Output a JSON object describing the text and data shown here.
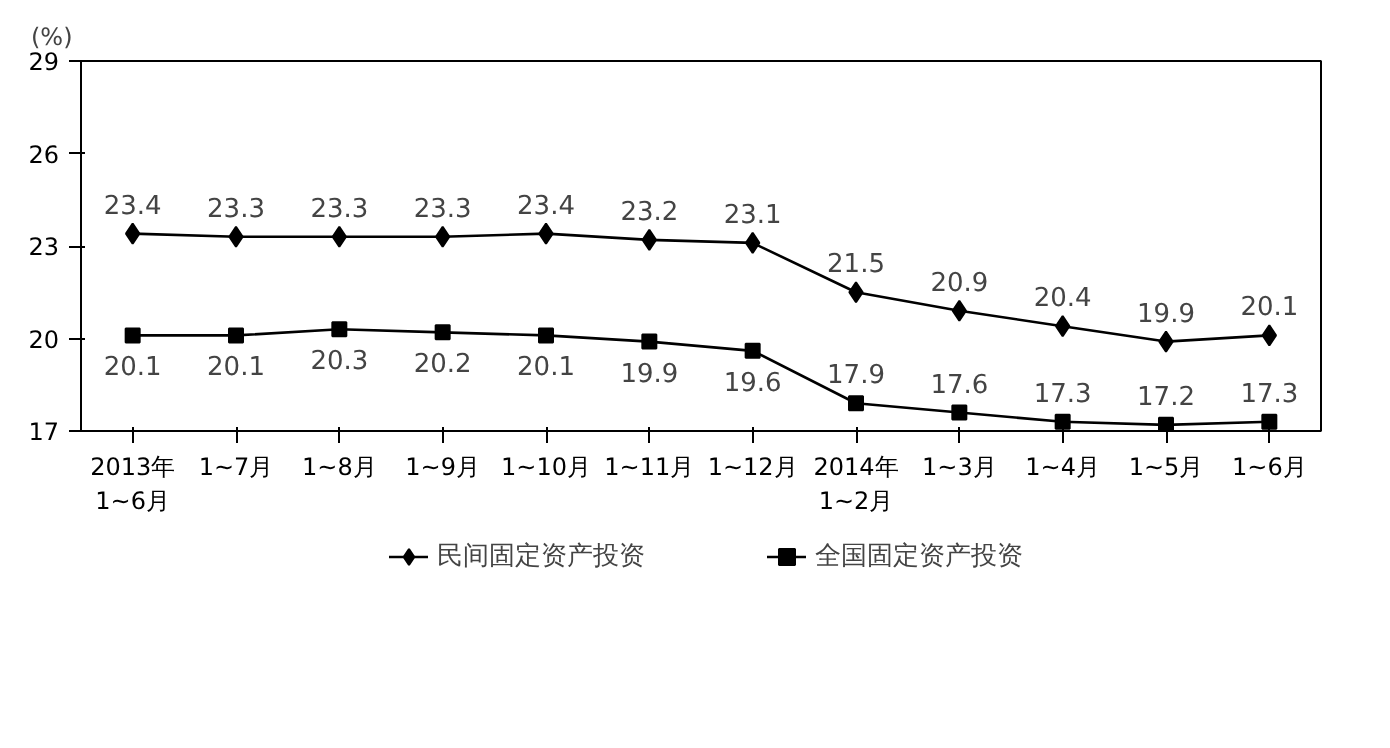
{
  "chart_data": {
    "type": "line",
    "ylabel": "(%)",
    "categories": [
      "2013年\n1~6月",
      "1~7月",
      "1~8月",
      "1~9月",
      "1~10月",
      "1~11月",
      "1~12月",
      "2014年\n1~2月",
      "1~3月",
      "1~4月",
      "1~5月",
      "1~6月"
    ],
    "series": [
      {
        "name": "民间固定资产投资",
        "color": "#000000",
        "marker": "diamond",
        "values": [
          23.4,
          23.3,
          23.3,
          23.3,
          23.4,
          23.2,
          23.1,
          21.5,
          20.9,
          20.4,
          19.9,
          20.1
        ]
      },
      {
        "name": "全国固定资产投资",
        "color": "#000000",
        "marker": "square",
        "values": [
          20.1,
          20.1,
          20.3,
          20.2,
          20.1,
          19.9,
          19.6,
          17.9,
          17.6,
          17.3,
          17.2,
          17.3
        ]
      }
    ],
    "ylim": [
      17,
      29
    ],
    "yticks": [
      17,
      20,
      23,
      26,
      29
    ],
    "grid": false,
    "legend": "bottom",
    "data_labels": true,
    "line_style": "solid"
  }
}
